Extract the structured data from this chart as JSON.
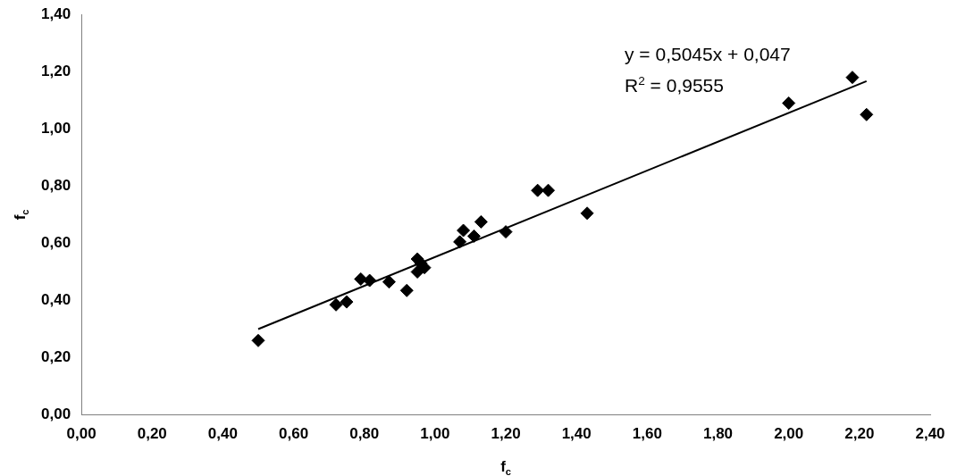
{
  "chart_data": {
    "type": "scatter",
    "xlabel": "f$_{c}$",
    "ylabel": "f$_{c}$",
    "marker": "diamond",
    "grid": false,
    "legend": false,
    "xlim": [
      0,
      2.4
    ],
    "ylim": [
      0,
      1.4
    ],
    "xticks": [
      {
        "value": 0,
        "label": "0,00"
      },
      {
        "value": 0.2,
        "label": "0,20"
      },
      {
        "value": 0.4,
        "label": "0,40"
      },
      {
        "value": 0.6,
        "label": "0,60"
      },
      {
        "value": 0.8,
        "label": "0,80"
      },
      {
        "value": 1,
        "label": "1,00"
      },
      {
        "value": 1.2,
        "label": "1,20"
      },
      {
        "value": 1.4,
        "label": "1,40"
      },
      {
        "value": 1.6,
        "label": "1,60"
      },
      {
        "value": 1.8,
        "label": "1,80"
      },
      {
        "value": 2,
        "label": "2,00"
      },
      {
        "value": 2.2,
        "label": "2,20"
      },
      {
        "value": 2.4,
        "label": "2,40"
      }
    ],
    "yticks": [
      {
        "value": 0,
        "label": "0,00"
      },
      {
        "value": 0.2,
        "label": "0,20"
      },
      {
        "value": 0.4,
        "label": "0,40"
      },
      {
        "value": 0.6,
        "label": "0,60"
      },
      {
        "value": 0.8,
        "label": "0,80"
      },
      {
        "value": 1,
        "label": "1,00"
      },
      {
        "value": 1.2,
        "label": "1,20"
      },
      {
        "value": 1.4,
        "label": "1,40"
      }
    ],
    "annotations": [
      "y = 0,5045x + 0,047",
      "R$^{2}$ = 0,9555"
    ],
    "series": [
      {
        "type": "scatter",
        "color": "#000000",
        "x": [
          0.5,
          0.72,
          0.75,
          0.79,
          0.815,
          0.87,
          0.92,
          0.95,
          0.95,
          0.96,
          0.97,
          1.07,
          1.08,
          1.11,
          1.13,
          1.2,
          1.29,
          1.32,
          1.43,
          2.0,
          2.18,
          2.22
        ],
        "values": [
          0.26,
          0.385,
          0.395,
          0.475,
          0.47,
          0.465,
          0.435,
          0.545,
          0.5,
          0.53,
          0.515,
          0.605,
          0.645,
          0.625,
          0.675,
          0.64,
          0.785,
          0.785,
          0.705,
          1.09,
          1.18,
          1.05
        ]
      },
      {
        "type": "line",
        "color": "#000000",
        "marker": "none",
        "x": [
          0.5,
          2.22
        ],
        "values": [
          0.3,
          1.167
        ]
      }
    ]
  }
}
